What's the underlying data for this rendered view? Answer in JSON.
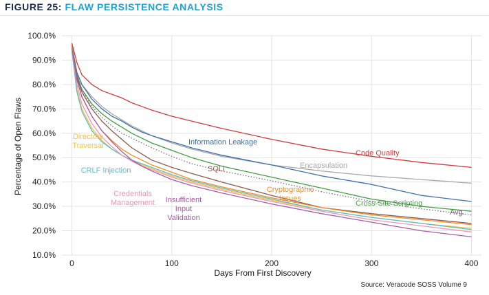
{
  "figure": {
    "number_label": "FIGURE 25:",
    "title": "FLAW PERSISTENCE ANALYSIS",
    "source": "Source: Veracode SOSS Volume 9"
  },
  "colors": {
    "title_number": "#1a2a4a",
    "title_text": "#1aa3d6",
    "grid": "#e3e3e3"
  },
  "chart_data": {
    "type": "line",
    "xlabel": "Days From First Discovery",
    "ylabel": "Percentage of Open Flaws",
    "xlim": [
      -10,
      410
    ],
    "ylim": [
      10,
      100
    ],
    "x_ticks": [
      0,
      100,
      200,
      300,
      400
    ],
    "y_ticks": [
      10,
      20,
      30,
      40,
      50,
      60,
      70,
      80,
      90,
      100
    ],
    "y_tick_labels": [
      "10.0%",
      "20.0%",
      "30.0%",
      "40.0%",
      "50.0%",
      "60.0%",
      "70.0%",
      "80.0%",
      "90.0%",
      "100.0%"
    ],
    "grid": true,
    "legend": "direct labels",
    "x": [
      0,
      5,
      10,
      20,
      30,
      40,
      50,
      60,
      70,
      80,
      100,
      120,
      150,
      200,
      250,
      300,
      350,
      400
    ],
    "series": [
      {
        "name": "Code Quality",
        "label_lines": [
          "Code Quality"
        ],
        "color": "#d23b3b",
        "dashed": false,
        "values": [
          97,
          89,
          84,
          80,
          77.5,
          76,
          74.5,
          72.5,
          71,
          69.5,
          67,
          65,
          62,
          57.5,
          53.5,
          50.5,
          48,
          46
        ]
      },
      {
        "name": "Encapsulation",
        "label_lines": [
          "Encapsulation"
        ],
        "color": "#a8a8a8",
        "dashed": false,
        "values": [
          96,
          85,
          80,
          75,
          71,
          68,
          65.5,
          63,
          61,
          59,
          56,
          53.5,
          50.5,
          47,
          44.5,
          42.5,
          41,
          39.5
        ]
      },
      {
        "name": "Information Leakage",
        "label_lines": [
          "Information Leakage"
        ],
        "color": "#3d6fa8",
        "dashed": false,
        "values": [
          96,
          85,
          80,
          74,
          70,
          67,
          65,
          62.5,
          60.5,
          59,
          56.5,
          54,
          51,
          47,
          42.5,
          39,
          34.5,
          32
        ]
      },
      {
        "name": "Cross-Site Scripting",
        "label_lines": [
          "Cross-Site Scripting"
        ],
        "color": "#3f9e3f",
        "dashed": false,
        "values": [
          96,
          84,
          78,
          72,
          68,
          65,
          62.5,
          60,
          58,
          56,
          53,
          50,
          46.5,
          42,
          37.5,
          33,
          30,
          28
        ]
      },
      {
        "name": "Avg.",
        "label_lines": [
          "Avg."
        ],
        "color": "#7a6a7a",
        "dashed": true,
        "values": [
          96,
          84,
          78,
          71,
          66.5,
          63,
          60,
          58,
          56,
          54,
          50.5,
          47.5,
          44.5,
          40.5,
          36,
          32,
          29,
          26.5
        ]
      },
      {
        "name": "SQLi",
        "label_lines": [
          "SQLi"
        ],
        "color": "#8b5a4a",
        "dashed": false,
        "values": [
          96,
          83,
          77,
          70,
          65,
          61,
          57.5,
          54,
          51.5,
          49,
          46,
          43.5,
          40,
          34.5,
          29.5,
          27,
          25,
          23
        ]
      },
      {
        "name": "Cryptographic Issues",
        "label_lines": [
          "Cryptographic",
          "Issues"
        ],
        "color": "#f08c1e",
        "dashed": false,
        "values": [
          96,
          82,
          75,
          67,
          61,
          57,
          53.5,
          51,
          49,
          47,
          44,
          41,
          38,
          33.5,
          29.5,
          26.5,
          24.5,
          22.5
        ]
      },
      {
        "name": "Directory Traversal",
        "label_lines": [
          "Directory",
          "Traversal"
        ],
        "color": "#f3c242",
        "dashed": false,
        "values": [
          94,
          78,
          70,
          62,
          57,
          53.5,
          51,
          49,
          47,
          45.5,
          42.5,
          40,
          37,
          32.5,
          28.5,
          25.5,
          23,
          21
        ]
      },
      {
        "name": "CRLF Injection",
        "label_lines": [
          "CRLF Injection"
        ],
        "color": "#5bbcc9",
        "dashed": false,
        "values": [
          94,
          77,
          69,
          61,
          56.5,
          53.5,
          51,
          49,
          47.5,
          46,
          43,
          40.5,
          37.5,
          33,
          28.5,
          25.5,
          23,
          20.5
        ]
      },
      {
        "name": "Credentials Management",
        "label_lines": [
          "Credentials",
          "Management"
        ],
        "color": "#ef97b2",
        "dashed": false,
        "values": [
          95,
          80,
          72,
          64,
          58.5,
          54.5,
          51,
          48.5,
          46.5,
          45,
          42,
          39.5,
          36.5,
          32,
          28,
          24.5,
          22,
          19.5
        ]
      },
      {
        "name": "Insufficient Input Validation",
        "label_lines": [
          "Insufficient",
          "Input",
          "Validation"
        ],
        "color": "#a65aa6",
        "dashed": false,
        "values": [
          95,
          82,
          75,
          67,
          61,
          56.5,
          52.5,
          49,
          46.5,
          44.5,
          41,
          38.5,
          35.5,
          31,
          27,
          23.5,
          20,
          17.5
        ]
      }
    ]
  }
}
